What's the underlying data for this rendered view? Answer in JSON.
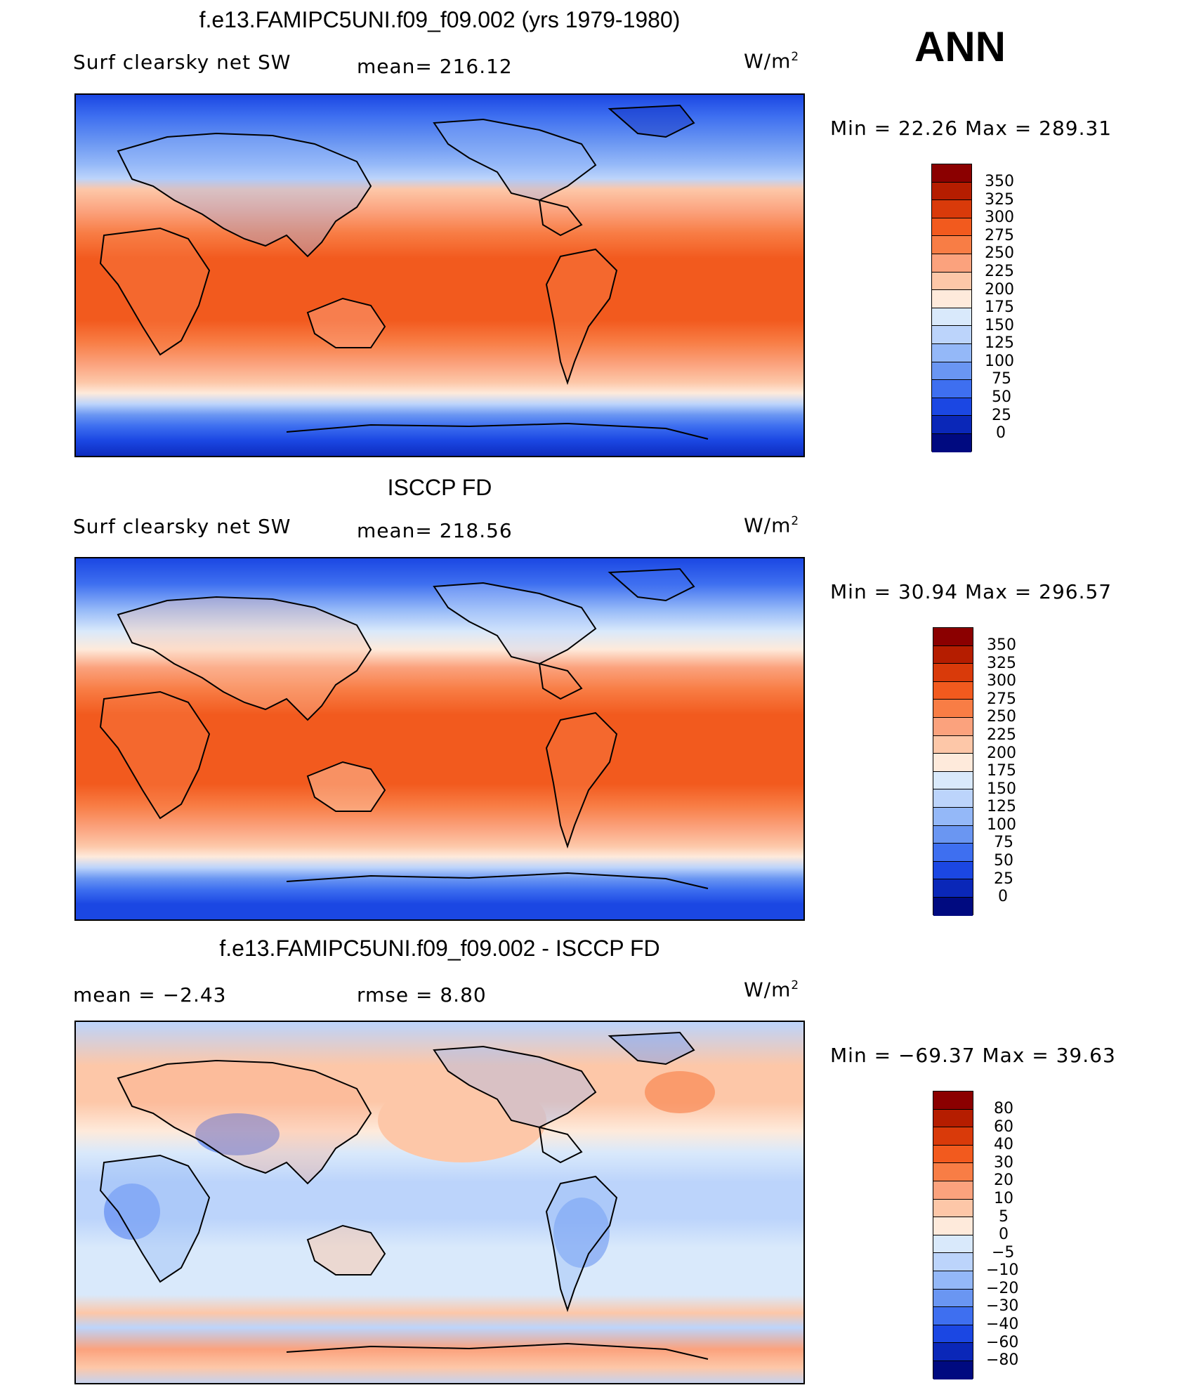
{
  "season": "ANN",
  "panels": [
    {
      "title": "f.e13.FAMIPC5UNI.f09_f09.002 (yrs 1979-1980)",
      "left_label": "Surf clearsky net SW",
      "mid_label": "mean= 216.12",
      "units": "W/m",
      "units_sup": "2",
      "minmax": "Min =   22.26 Max =  289.31",
      "levels": [
        "350",
        "325",
        "300",
        "275",
        "250",
        "225",
        "200",
        "175",
        "150",
        "125",
        "100",
        "75",
        "50",
        "25",
        "0"
      ]
    },
    {
      "title": "ISCCP FD",
      "left_label": "Surf clearsky net SW",
      "mid_label": "mean= 218.56",
      "units": "W/m",
      "units_sup": "2",
      "minmax": "Min =   30.94 Max =  296.57",
      "levels": [
        "350",
        "325",
        "300",
        "275",
        "250",
        "225",
        "200",
        "175",
        "150",
        "125",
        "100",
        "75",
        "50",
        "25",
        "0"
      ]
    },
    {
      "title": "f.e13.FAMIPC5UNI.f09_f09.002 - ISCCP FD",
      "left_label": "mean =   −2.43",
      "mid_label": "rmse =    8.80",
      "units": "W/m",
      "units_sup": "2",
      "minmax": "Min = −69.37 Max =   39.63",
      "levels": [
        "80",
        "60",
        "40",
        "30",
        "20",
        "10",
        "5",
        "0",
        "−5",
        "−10",
        "−20",
        "−30",
        "−40",
        "−60",
        "−80"
      ]
    }
  ],
  "colors": {
    "ramp": [
      "#8b0000",
      "#b51d00",
      "#d93a0a",
      "#f25a1e",
      "#f87d45",
      "#fba27d",
      "#fdc7a8",
      "#feeadb",
      "#d9e9fb",
      "#bcd4fb",
      "#94b8f8",
      "#6a96f2",
      "#3e6ff0",
      "#1b47e3",
      "#0a27b8",
      "#000a80"
    ]
  }
}
